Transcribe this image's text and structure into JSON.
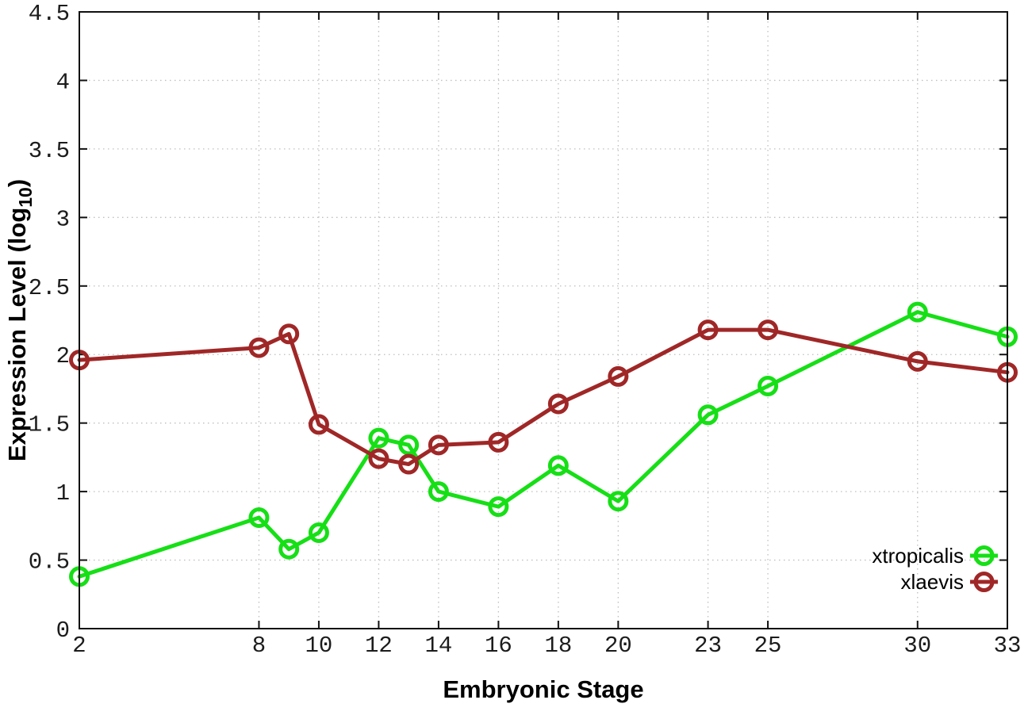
{
  "figure": {
    "background_color": "#ffffff",
    "border_color": "#111111",
    "grid_color": "#bfbfbf",
    "tick_label_color": "#1c1c1c"
  },
  "chart_data": {
    "type": "line",
    "title": "",
    "xlabel": "Embryonic Stage",
    "ylabel": "Expression Level (log10)",
    "ylabel_parts": {
      "pre": "Expression Level (log",
      "sub": "10",
      "post": ")"
    },
    "x": [
      2,
      8,
      9,
      10,
      12,
      13,
      14,
      16,
      18,
      20,
      23,
      25,
      30,
      33
    ],
    "series": [
      {
        "name": "xtropicalis",
        "color": "#16df16",
        "values": [
          0.38,
          0.81,
          0.58,
          0.7,
          1.39,
          1.34,
          1.0,
          0.89,
          1.19,
          0.93,
          1.56,
          1.77,
          2.31,
          2.13
        ]
      },
      {
        "name": "xlaevis",
        "color": "#a02727",
        "values": [
          1.96,
          2.05,
          2.15,
          1.49,
          1.24,
          1.2,
          1.34,
          1.36,
          1.64,
          1.84,
          2.18,
          2.18,
          1.95,
          1.87
        ]
      }
    ],
    "xlim": [
      2,
      33
    ],
    "ylim": [
      0,
      4.5
    ],
    "xticks": [
      2,
      8,
      10,
      12,
      14,
      16,
      18,
      20,
      23,
      25,
      30,
      33
    ],
    "xtick_labels": [
      "2",
      "8",
      "10",
      "12",
      "14",
      "16",
      "18",
      "20",
      "23",
      "25",
      "30",
      "33"
    ],
    "yticks": [
      0,
      0.5,
      1,
      1.5,
      2,
      2.5,
      3,
      3.5,
      4,
      4.5
    ],
    "ytick_labels": [
      "0",
      "0.5",
      "1",
      "1.5",
      "2",
      "2.5",
      "3",
      "3.5",
      "4",
      "4.5"
    ],
    "grid": true,
    "grid_style": "dotted",
    "legend_position": "bottom-right",
    "legend_entries": [
      "xtropicalis",
      "xlaevis"
    ],
    "marker": "open-circle",
    "marker_radius": 10.5,
    "line_width": 5
  }
}
